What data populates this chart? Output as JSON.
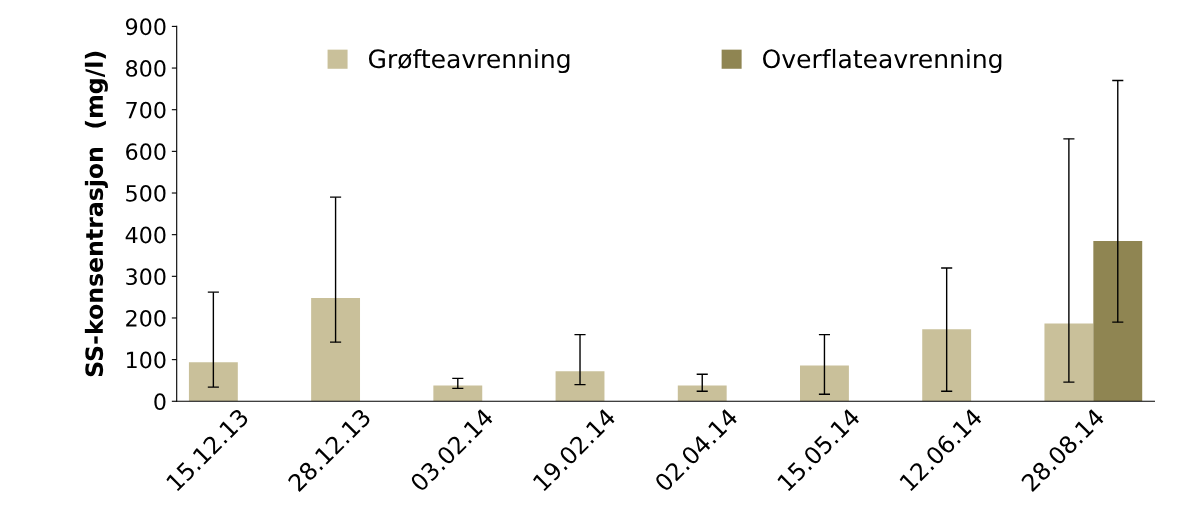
{
  "chart_data": {
    "type": "bar",
    "ylabel": "SS-konsentrasjon  (mg/l)",
    "categories": [
      "15.12.13",
      "28.12.13",
      "03.02.14",
      "19.02.14",
      "02.04.14",
      "15.05.14",
      "12.06.14",
      "28.08.14"
    ],
    "series": [
      {
        "name": "Grøfteavrenning",
        "color": "#c9c09a",
        "values": [
          94,
          248,
          38,
          72,
          38,
          86,
          173,
          187
        ],
        "errors": [
          [
            34,
            262
          ],
          [
            142,
            490
          ],
          [
            31,
            55
          ],
          [
            40,
            160
          ],
          [
            24,
            65
          ],
          [
            17,
            160
          ],
          [
            24,
            320
          ],
          [
            46,
            630
          ]
        ]
      },
      {
        "name": "Overflateavrenning",
        "color": "#8f8552",
        "values": [
          null,
          null,
          null,
          null,
          null,
          null,
          null,
          385
        ],
        "errors": [
          null,
          null,
          null,
          null,
          null,
          null,
          null,
          [
            190,
            770
          ]
        ]
      }
    ],
    "ylim": [
      0,
      900
    ],
    "yticks": [
      0,
      100,
      200,
      300,
      400,
      500,
      600,
      700,
      800,
      900
    ],
    "grid": false,
    "legend": "top"
  }
}
